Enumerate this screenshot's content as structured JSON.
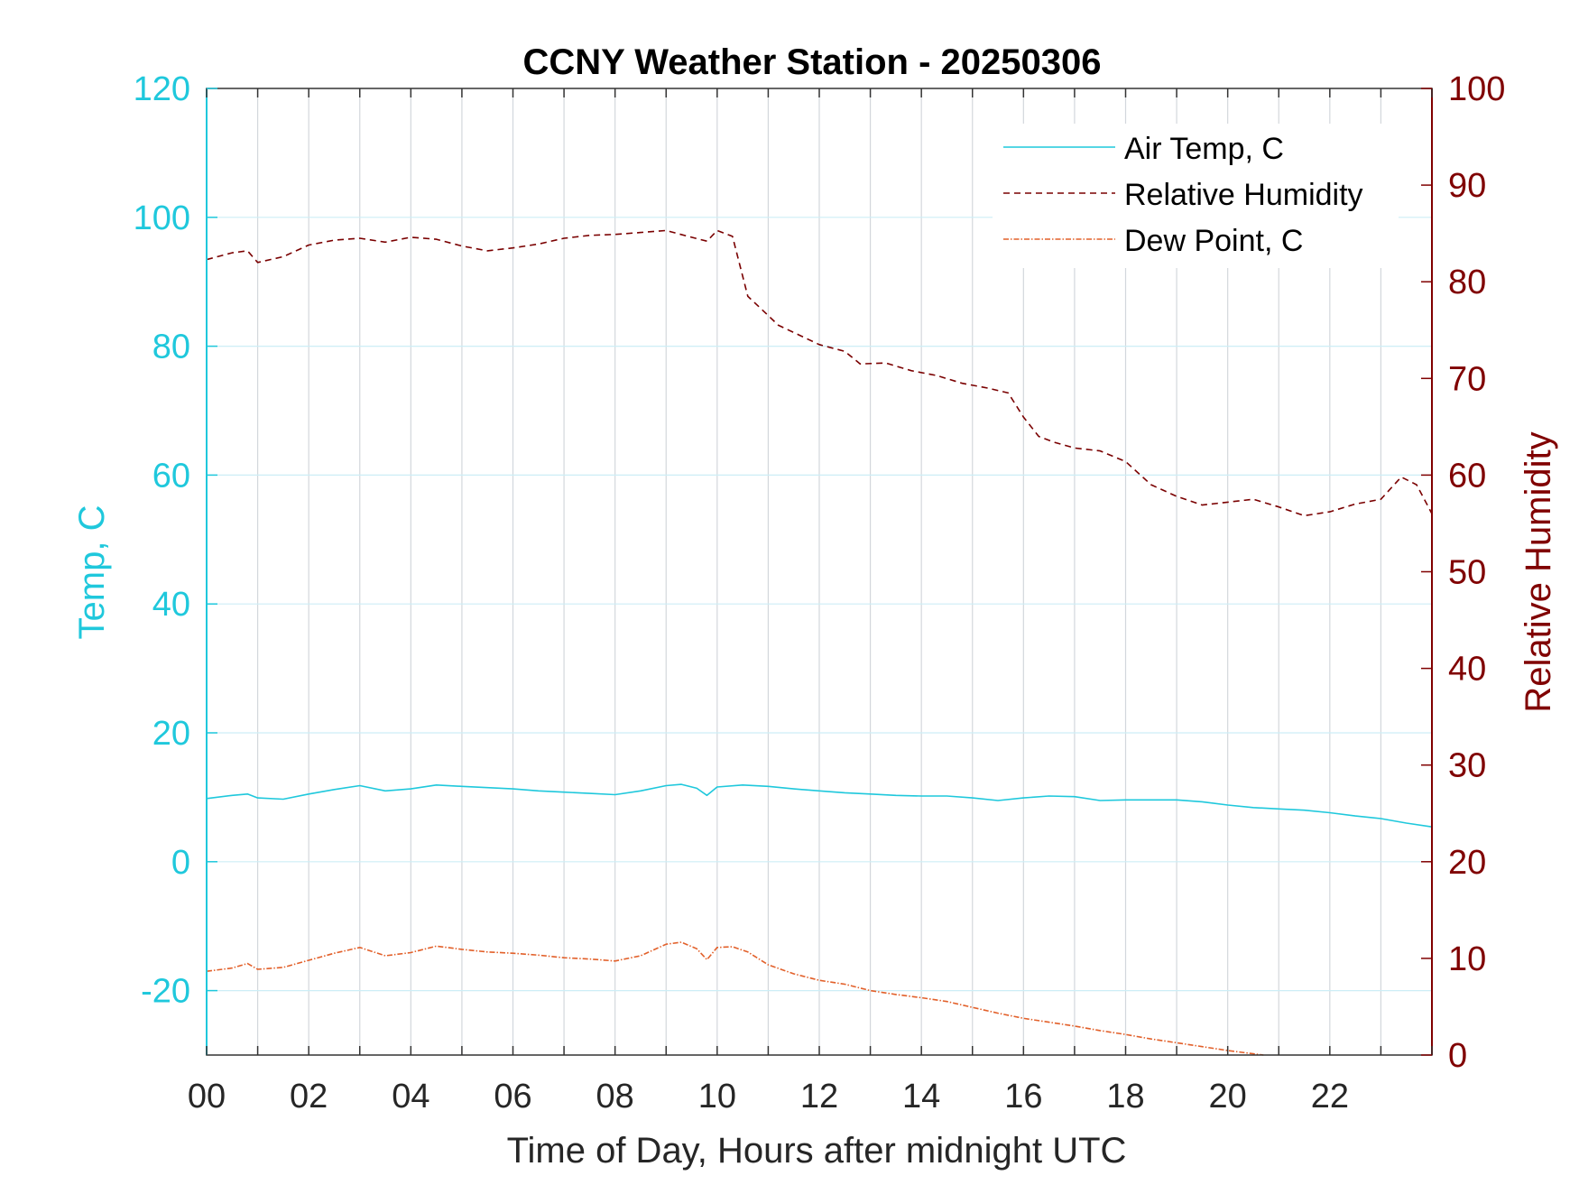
{
  "chart_data": {
    "type": "line",
    "title": "CCNY Weather Station - 20250306",
    "xlabel": "Time of Day, Hours after midnight UTC",
    "ylabel_left": "Temp, C",
    "ylabel_right": "Relative Humidity",
    "xlim": [
      0,
      24
    ],
    "ylim_left": [
      -30,
      120
    ],
    "ylim_right": [
      0,
      100
    ],
    "x_ticks": [
      0,
      2,
      4,
      6,
      8,
      10,
      12,
      14,
      16,
      18,
      20,
      22
    ],
    "x_tick_labels": [
      "00",
      "02",
      "04",
      "06",
      "08",
      "10",
      "12",
      "14",
      "16",
      "18",
      "20",
      "22"
    ],
    "y_left_ticks": [
      120,
      100,
      80,
      60,
      40,
      20,
      0,
      -20
    ],
    "y_left_tick_labels": [
      "120",
      "100",
      "80",
      "60",
      "40",
      "20",
      "0",
      "-20"
    ],
    "y_right_ticks": [
      100,
      90,
      80,
      70,
      60,
      50,
      40,
      30,
      20,
      10,
      0
    ],
    "y_right_tick_labels": [
      "100",
      "90",
      "80",
      "70",
      "60",
      "50",
      "40",
      "30",
      "20",
      "10",
      "0"
    ],
    "grid": true,
    "legend_position": "top-right",
    "colors": {
      "left_axis": "#1fc8dc",
      "right_axis": "#800000",
      "air_temp": "#1fc8dc",
      "humidity": "#7a0000",
      "dew_point": "#e2602a",
      "grid_vertical": "#d3d7dc",
      "grid_horizontal": "#cdeef6"
    },
    "series": [
      {
        "name": "Air Temp, C",
        "axis": "left",
        "style": "solid",
        "x": [
          0,
          0.5,
          0.8,
          1.0,
          1.5,
          2.0,
          2.5,
          3.0,
          3.5,
          4.0,
          4.5,
          5.0,
          5.5,
          6.0,
          6.5,
          7.0,
          7.5,
          8.0,
          8.5,
          9.0,
          9.3,
          9.6,
          9.8,
          10.0,
          10.5,
          11.0,
          11.5,
          12.0,
          12.5,
          13.0,
          13.5,
          14.0,
          14.5,
          15.0,
          15.5,
          16.0,
          16.5,
          17.0,
          17.5,
          18.0,
          18.5,
          19.0,
          19.5,
          20.0,
          20.5,
          21.0,
          21.5,
          22.0,
          22.5,
          23.0,
          23.5,
          24.0
        ],
        "y": [
          9.8,
          10.3,
          10.5,
          9.9,
          9.7,
          10.5,
          11.2,
          11.8,
          11.0,
          11.3,
          11.9,
          11.7,
          11.5,
          11.3,
          11.0,
          10.8,
          10.6,
          10.4,
          11.0,
          11.8,
          12.0,
          11.4,
          10.3,
          11.6,
          11.9,
          11.7,
          11.3,
          11.0,
          10.7,
          10.5,
          10.3,
          10.2,
          10.2,
          9.9,
          9.5,
          9.9,
          10.2,
          10.1,
          9.5,
          9.6,
          9.6,
          9.6,
          9.3,
          8.8,
          8.4,
          8.2,
          8.0,
          7.6,
          7.1,
          6.7,
          6.0,
          5.4
        ]
      },
      {
        "name": "Relative Humidity",
        "axis": "right",
        "style": "dashed",
        "x": [
          0,
          0.5,
          0.8,
          1.0,
          1.5,
          2.0,
          2.5,
          3.0,
          3.5,
          4.0,
          4.5,
          5.0,
          5.5,
          6.0,
          6.5,
          7.0,
          7.5,
          8.0,
          8.5,
          9.0,
          9.5,
          9.8,
          10.0,
          10.3,
          10.6,
          10.9,
          11.2,
          11.6,
          12.0,
          12.5,
          12.8,
          13.3,
          13.8,
          14.3,
          14.8,
          15.3,
          15.7,
          16.0,
          16.3,
          16.6,
          17.0,
          17.5,
          18.0,
          18.5,
          19.0,
          19.5,
          20.0,
          20.5,
          21.0,
          21.5,
          22.0,
          22.5,
          23.0,
          23.4,
          23.7,
          24.0
        ],
        "y": [
          82.3,
          83.0,
          83.2,
          82.0,
          82.6,
          83.8,
          84.3,
          84.5,
          84.1,
          84.6,
          84.4,
          83.7,
          83.2,
          83.5,
          83.9,
          84.5,
          84.8,
          84.9,
          85.1,
          85.3,
          84.6,
          84.2,
          85.3,
          84.7,
          78.5,
          77.0,
          75.5,
          74.5,
          73.5,
          72.8,
          71.5,
          71.6,
          70.8,
          70.3,
          69.5,
          69.0,
          68.5,
          66.0,
          64.0,
          63.4,
          62.8,
          62.5,
          61.4,
          59.0,
          57.8,
          56.9,
          57.2,
          57.5,
          56.7,
          55.8,
          56.2,
          57.0,
          57.5,
          59.8,
          59.0,
          56.0
        ]
      },
      {
        "name": "Dew Point, C",
        "axis": "left",
        "style": "dash-dot",
        "x": [
          0,
          0.5,
          0.8,
          1.0,
          1.5,
          2.0,
          2.5,
          3.0,
          3.5,
          4.0,
          4.5,
          5.0,
          5.5,
          6.0,
          6.5,
          7.0,
          7.5,
          8.0,
          8.5,
          9.0,
          9.3,
          9.6,
          9.8,
          10.0,
          10.3,
          10.6,
          11.0,
          11.5,
          12.0,
          12.5,
          13.0,
          13.5,
          14.0,
          14.5,
          15.0,
          15.5,
          16.0,
          16.5,
          17.0,
          17.5,
          18.0,
          18.5,
          19.0,
          19.5,
          20.0,
          20.5,
          20.7
        ],
        "y": [
          -17.0,
          -16.5,
          -15.8,
          -16.7,
          -16.4,
          -15.3,
          -14.2,
          -13.3,
          -14.6,
          -14.1,
          -13.1,
          -13.6,
          -14.0,
          -14.2,
          -14.5,
          -14.9,
          -15.1,
          -15.4,
          -14.6,
          -12.8,
          -12.5,
          -13.5,
          -15.2,
          -13.3,
          -13.2,
          -14.0,
          -16.0,
          -17.4,
          -18.4,
          -19.0,
          -20.0,
          -20.6,
          -21.1,
          -21.7,
          -22.6,
          -23.5,
          -24.3,
          -24.9,
          -25.5,
          -26.2,
          -26.8,
          -27.5,
          -28.1,
          -28.7,
          -29.3,
          -29.8,
          -30.0
        ]
      }
    ]
  }
}
